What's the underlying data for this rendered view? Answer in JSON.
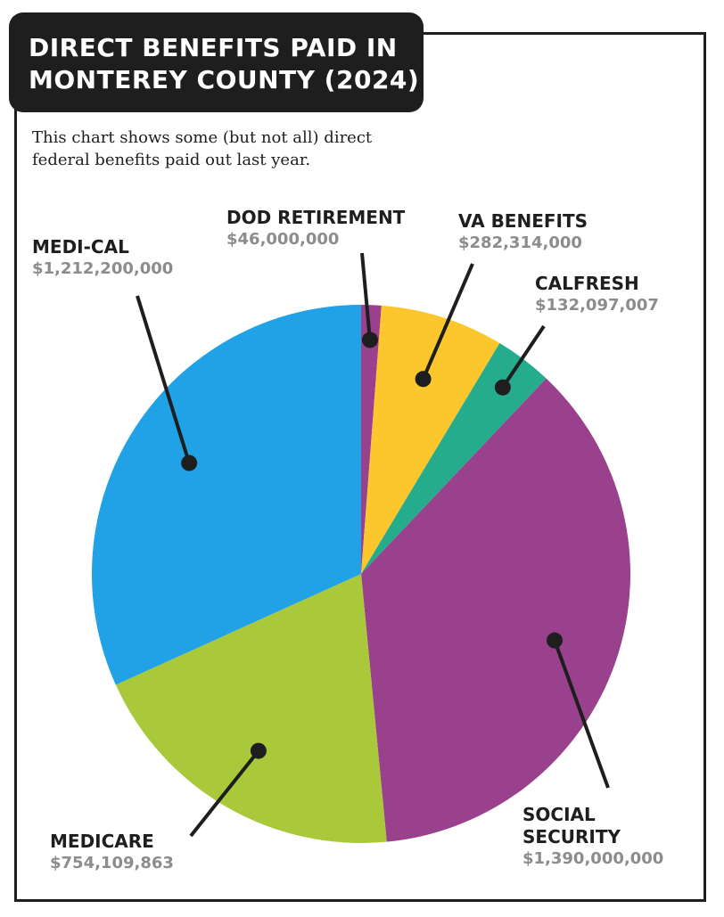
{
  "header": {
    "title_lines": [
      "DIRECT BENEFITS PAID IN",
      "MONTEREY COUNTY (2024)"
    ],
    "subtitle_lines": [
      "This chart shows some (but not all) direct",
      "federal benefits paid out last year."
    ]
  },
  "chart_data": {
    "type": "pie",
    "title": "DIRECT BENEFITS PAID IN MONTEREY COUNTY (2024)",
    "start": "12 o'clock",
    "direction": "clockwise",
    "slices": [
      {
        "name_lines": [
          "DOD RETIREMENT"
        ],
        "value_label": "$46,000,000",
        "value": 46000000,
        "color": "#9a418d"
      },
      {
        "name_lines": [
          "VA BENEFITS"
        ],
        "value_label": "$282,314,000",
        "value": 282314000,
        "color": "#fbc72c"
      },
      {
        "name_lines": [
          "CALFRESH"
        ],
        "value_label": "$132,097,007",
        "value": 132097007,
        "color": "#24ac8c"
      },
      {
        "name_lines": [
          "SOCIAL",
          "SECURITY"
        ],
        "value_label": "$1,390,000,000",
        "value": 1390000000,
        "color": "#9a418d"
      },
      {
        "name_lines": [
          "MEDICARE"
        ],
        "value_label": "$754,109,863",
        "value": 754109863,
        "color": "#a9c93b"
      },
      {
        "name_lines": [
          "MEDI-CAL"
        ],
        "value_label": "$1,212,200,000",
        "value": 1212200000,
        "color": "#21a1e6"
      }
    ]
  }
}
